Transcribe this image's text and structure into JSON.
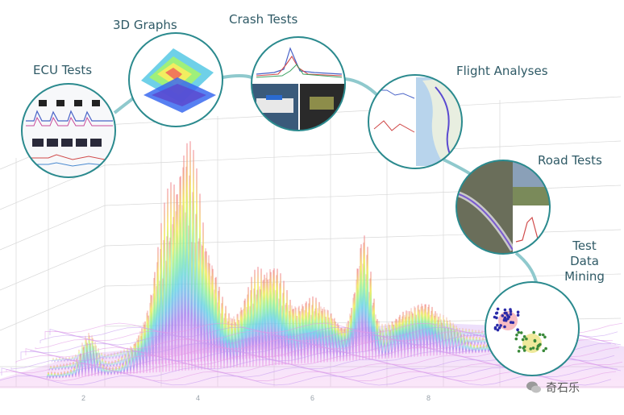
{
  "labels": {
    "ecu": "ECU Tests",
    "graphs3d": "3D Graphs",
    "crash": "Crash Tests",
    "flight": "Flight Analyses",
    "road": "Road Tests",
    "mining_1": "Test",
    "mining_2": "Data",
    "mining_3": "Mining"
  },
  "axis_ticks": [
    "2",
    "4",
    "6",
    "8"
  ],
  "watermark": "奇石乐",
  "colors": {
    "label": "#2f5a66",
    "ring": "#2b8a8e",
    "connector": "#8fc9cd",
    "grid": "#d4d4d4"
  }
}
